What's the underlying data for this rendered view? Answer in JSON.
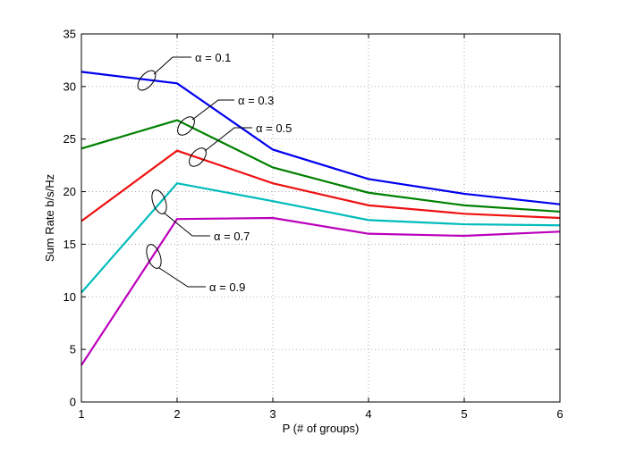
{
  "chart_data": {
    "type": "line",
    "title": "",
    "xlabel": "P (# of groups)",
    "ylabel": "Sum Rate b/s/Hz",
    "x": [
      1,
      2,
      3,
      4,
      5,
      6
    ],
    "xlim": [
      1,
      6
    ],
    "ylim": [
      0,
      35
    ],
    "xticks": [
      1,
      2,
      3,
      4,
      5,
      6
    ],
    "yticks": [
      0,
      5,
      10,
      15,
      20,
      25,
      30,
      35
    ],
    "grid": true,
    "series": [
      {
        "name": "α = 0.1",
        "color": "#0000ee",
        "values": [
          31.4,
          30.3,
          24.0,
          21.2,
          19.8,
          18.8
        ]
      },
      {
        "name": "α = 0.3",
        "color": "#008000",
        "values": [
          24.1,
          26.8,
          22.3,
          19.9,
          18.7,
          18.1
        ]
      },
      {
        "name": "α = 0.5",
        "color": "#ee1111",
        "values": [
          17.2,
          23.9,
          20.8,
          18.7,
          17.9,
          17.5
        ]
      },
      {
        "name": "α = 0.7",
        "color": "#00bbbb",
        "values": [
          10.4,
          20.8,
          19.1,
          17.3,
          16.9,
          16.8
        ]
      },
      {
        "name": "α = 0.9",
        "color": "#bb00bb",
        "values": [
          3.5,
          17.4,
          17.5,
          16.0,
          15.8,
          16.2
        ]
      }
    ],
    "annotations": [
      {
        "text": "α = 0.1"
      },
      {
        "text": "α = 0.3"
      },
      {
        "text": "α = 0.5"
      },
      {
        "text": "α = 0.7"
      },
      {
        "text": "α = 0.9"
      }
    ]
  }
}
